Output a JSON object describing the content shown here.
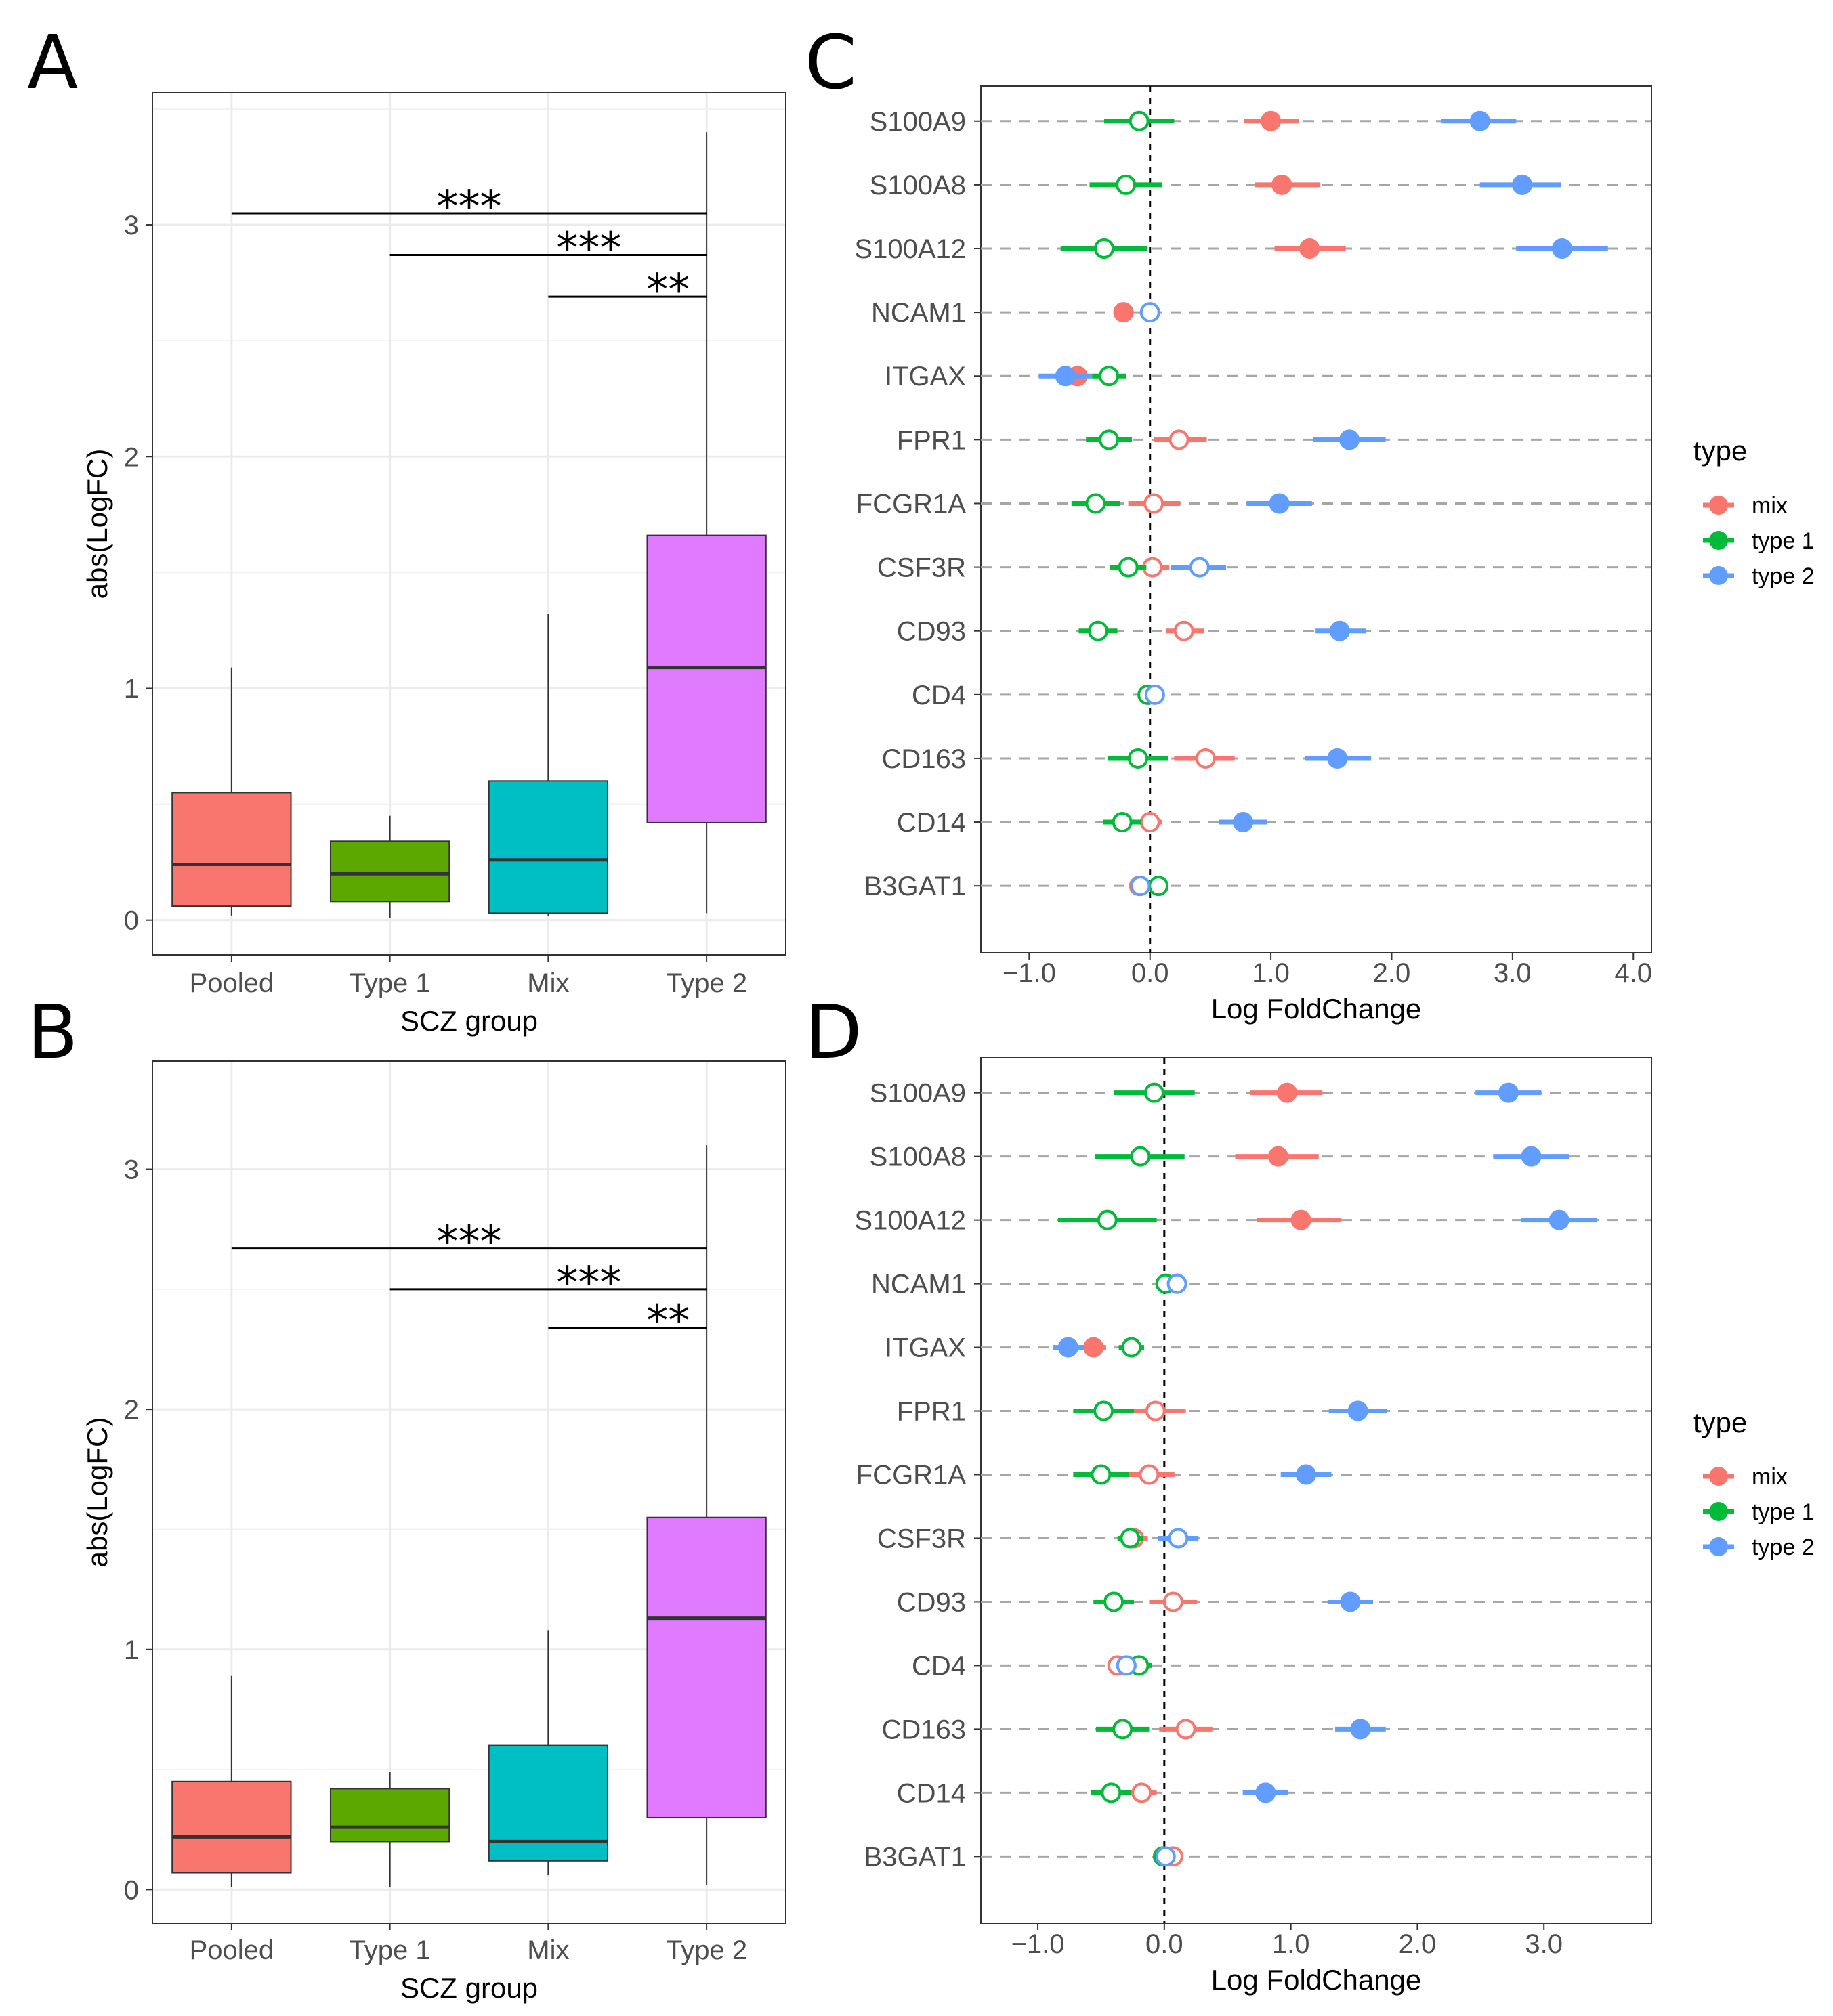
{
  "chart_data": [
    {
      "panel": "A",
      "type": "boxplot",
      "xlabel": "SCZ group",
      "ylabel": "abs(LogFC)",
      "ylim": [
        -0.15,
        3.57
      ],
      "yticks": [
        "0",
        "1",
        "2",
        "3"
      ],
      "categories": [
        "Pooled",
        "Type 1",
        "Mix",
        "Type 2"
      ],
      "colors": [
        "#f8766d",
        "#5ca800",
        "#00bfc4",
        "#e07bff"
      ],
      "boxes": [
        {
          "whisker_low": 0.02,
          "q1": 0.06,
          "median": 0.24,
          "q3": 0.55,
          "whisker_high": 1.09
        },
        {
          "whisker_low": 0.01,
          "q1": 0.08,
          "median": 0.2,
          "q3": 0.34,
          "whisker_high": 0.45
        },
        {
          "whisker_low": 0.02,
          "q1": 0.03,
          "median": 0.26,
          "q3": 0.6,
          "whisker_high": 1.32
        },
        {
          "whisker_low": 0.03,
          "q1": 0.42,
          "median": 1.09,
          "q3": 1.66,
          "whisker_high": 3.4
        }
      ],
      "significance": [
        {
          "from": "Pooled",
          "to": "Type 2",
          "y": 3.05,
          "label": "***"
        },
        {
          "from": "Type 1",
          "to": "Type 2",
          "y": 2.87,
          "label": "***"
        },
        {
          "from": "Mix",
          "to": "Type 2",
          "y": 2.69,
          "label": "**"
        }
      ]
    },
    {
      "panel": "B",
      "type": "boxplot",
      "xlabel": "SCZ group",
      "ylabel": "abs(LogFC)",
      "ylim": [
        -0.14,
        3.45
      ],
      "yticks": [
        "0",
        "1",
        "2",
        "3"
      ],
      "categories": [
        "Pooled",
        "Type 1",
        "Mix",
        "Type 2"
      ],
      "colors": [
        "#f8766d",
        "#5ca800",
        "#00bfc4",
        "#e07bff"
      ],
      "boxes": [
        {
          "whisker_low": 0.01,
          "q1": 0.07,
          "median": 0.22,
          "q3": 0.45,
          "whisker_high": 0.89
        },
        {
          "whisker_low": 0.01,
          "q1": 0.2,
          "median": 0.26,
          "q3": 0.42,
          "whisker_high": 0.49
        },
        {
          "whisker_low": 0.06,
          "q1": 0.12,
          "median": 0.2,
          "q3": 0.6,
          "whisker_high": 1.08
        },
        {
          "whisker_low": 0.02,
          "q1": 0.3,
          "median": 1.13,
          "q3": 1.55,
          "whisker_high": 3.1
        }
      ],
      "significance": [
        {
          "from": "Pooled",
          "to": "Type 2",
          "y": 2.67,
          "label": "***"
        },
        {
          "from": "Type 1",
          "to": "Type 2",
          "y": 2.5,
          "label": "***"
        },
        {
          "from": "Mix",
          "to": "Type 2",
          "y": 2.34,
          "label": "**"
        }
      ]
    },
    {
      "panel": "C",
      "type": "forest",
      "xlabel": "Log FoldChange",
      "xlim": [
        -1.4,
        4.15
      ],
      "xticks": [
        -1,
        0,
        1,
        2,
        3,
        4
      ],
      "xtick_labels": [
        "−1.0",
        "0.0",
        "1.0",
        "2.0",
        "3.0",
        "4.0"
      ],
      "genes": [
        "S100A9",
        "S100A8",
        "S100A12",
        "NCAM1",
        "ITGAX",
        "FPR1",
        "FCGR1A",
        "CSF3R",
        "CD93",
        "CD4",
        "CD163",
        "CD14",
        "B3GAT1"
      ],
      "legend_title": "type",
      "series": [
        {
          "name": "mix",
          "color": "#f8766d",
          "estimate": [
            1.0,
            1.09,
            1.32,
            -0.22,
            -0.6,
            0.24,
            0.03,
            0.02,
            0.28,
            -0.01,
            0.46,
            0.0,
            -0.09
          ],
          "lower": [
            0.78,
            0.87,
            1.03,
            -0.3,
            -0.7,
            0.03,
            -0.18,
            -0.13,
            0.13,
            -0.05,
            0.2,
            -0.1,
            -0.15
          ],
          "upper": [
            1.23,
            1.41,
            1.62,
            -0.14,
            -0.5,
            0.47,
            0.25,
            0.16,
            0.45,
            0.03,
            0.7,
            0.1,
            -0.03
          ],
          "significant": [
            true,
            true,
            true,
            true,
            true,
            false,
            false,
            false,
            false,
            false,
            false,
            false,
            false
          ]
        },
        {
          "name": "type 1",
          "color": "#00ba38",
          "estimate": [
            -0.09,
            -0.2,
            -0.38,
            null,
            -0.34,
            -0.34,
            -0.45,
            -0.18,
            -0.43,
            -0.02,
            -0.1,
            -0.23,
            0.07
          ],
          "lower": [
            -0.38,
            -0.5,
            -0.74,
            null,
            -0.48,
            -0.53,
            -0.65,
            -0.33,
            -0.59,
            -0.06,
            -0.35,
            -0.39,
            0.01
          ],
          "upper": [
            0.2,
            0.1,
            -0.02,
            null,
            -0.2,
            -0.15,
            -0.25,
            -0.03,
            -0.27,
            0.02,
            0.15,
            -0.07,
            0.13
          ],
          "significant": [
            false,
            false,
            false,
            false,
            false,
            false,
            false,
            false,
            false,
            false,
            false,
            false,
            false
          ]
        },
        {
          "name": "type 2",
          "color": "#619cff",
          "estimate": [
            2.73,
            3.08,
            3.41,
            0.0,
            -0.7,
            1.65,
            1.07,
            0.41,
            1.57,
            0.04,
            1.55,
            0.77,
            -0.08
          ],
          "lower": [
            2.41,
            2.73,
            3.03,
            -0.06,
            -0.92,
            1.35,
            0.8,
            0.17,
            1.37,
            -0.02,
            1.28,
            0.57,
            -0.14
          ],
          "upper": [
            3.03,
            3.4,
            3.79,
            0.06,
            -0.48,
            1.95,
            1.34,
            0.63,
            1.79,
            0.11,
            1.83,
            0.97,
            -0.02
          ],
          "significant": [
            true,
            true,
            true,
            false,
            true,
            true,
            true,
            false,
            true,
            false,
            true,
            true,
            false
          ]
        }
      ]
    },
    {
      "panel": "D",
      "type": "forest",
      "xlabel": "Log FoldChange",
      "xlim": [
        -1.45,
        3.85
      ],
      "xticks": [
        -1,
        0,
        1,
        2,
        3
      ],
      "xtick_labels": [
        "−1.0",
        "0.0",
        "1.0",
        "2.0",
        "3.0"
      ],
      "genes": [
        "S100A9",
        "S100A8",
        "S100A12",
        "NCAM1",
        "ITGAX",
        "FPR1",
        "FCGR1A",
        "CSF3R",
        "CD93",
        "CD4",
        "CD163",
        "CD14",
        "B3GAT1"
      ],
      "legend_title": "type",
      "series": [
        {
          "name": "mix",
          "color": "#f8766d",
          "estimate": [
            0.97,
            0.9,
            1.08,
            0.1,
            -0.56,
            -0.07,
            -0.12,
            -0.24,
            0.07,
            -0.37,
            0.17,
            -0.18,
            0.07
          ],
          "lower": [
            0.68,
            0.56,
            0.73,
            0.04,
            -0.66,
            -0.3,
            -0.32,
            -0.35,
            -0.12,
            -0.44,
            -0.04,
            -0.3,
            0.01
          ],
          "upper": [
            1.25,
            1.22,
            1.4,
            0.16,
            -0.46,
            0.17,
            0.08,
            -0.13,
            0.26,
            -0.3,
            0.38,
            -0.06,
            0.13
          ],
          "significant": [
            true,
            true,
            true,
            false,
            true,
            false,
            false,
            false,
            false,
            false,
            false,
            false,
            false
          ]
        },
        {
          "name": "type 1",
          "color": "#00ba38",
          "estimate": [
            -0.08,
            -0.19,
            -0.45,
            0.01,
            -0.26,
            -0.48,
            -0.5,
            -0.27,
            -0.4,
            -0.2,
            -0.33,
            -0.42,
            -0.01
          ],
          "lower": [
            -0.4,
            -0.55,
            -0.84,
            -0.03,
            -0.36,
            -0.72,
            -0.72,
            -0.37,
            -0.56,
            -0.3,
            -0.54,
            -0.58,
            -0.05
          ],
          "upper": [
            0.24,
            0.16,
            -0.06,
            0.05,
            -0.16,
            -0.24,
            -0.28,
            -0.17,
            -0.24,
            -0.1,
            -0.12,
            -0.26,
            0.03
          ],
          "significant": [
            false,
            false,
            false,
            false,
            false,
            false,
            false,
            false,
            false,
            false,
            false,
            false,
            false
          ]
        },
        {
          "name": "type 2",
          "color": "#619cff",
          "estimate": [
            2.72,
            2.9,
            3.12,
            0.1,
            -0.76,
            1.53,
            1.12,
            0.11,
            1.47,
            -0.3,
            1.55,
            0.8,
            0.01
          ],
          "lower": [
            2.46,
            2.6,
            2.82,
            0.04,
            -0.88,
            1.3,
            0.92,
            -0.05,
            1.29,
            -0.38,
            1.35,
            0.62,
            -0.03
          ],
          "upper": [
            2.98,
            3.2,
            3.42,
            0.16,
            -0.64,
            1.76,
            1.32,
            0.27,
            1.65,
            -0.22,
            1.75,
            0.98,
            0.05
          ],
          "significant": [
            true,
            true,
            true,
            false,
            true,
            true,
            true,
            false,
            true,
            false,
            true,
            true,
            false
          ]
        }
      ]
    }
  ],
  "panel_labels": [
    "A",
    "B",
    "C",
    "D"
  ],
  "legend": {
    "title": "type",
    "items": [
      {
        "name": "mix",
        "color": "#f8766d"
      },
      {
        "name": "type 1",
        "color": "#00ba38"
      },
      {
        "name": "type 2",
        "color": "#619cff"
      }
    ]
  }
}
